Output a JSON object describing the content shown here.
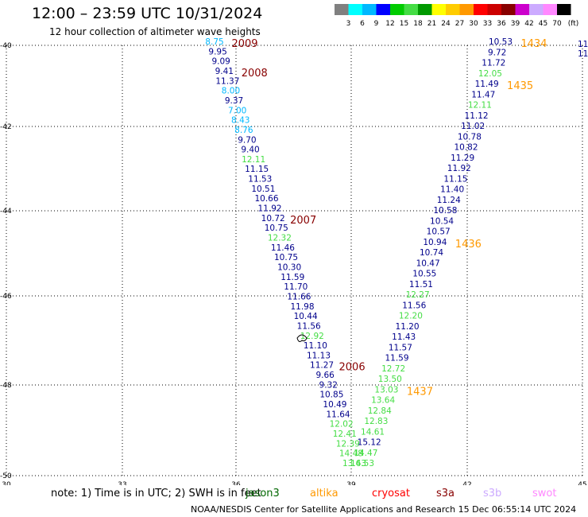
{
  "header": {
    "title": "12:00 – 23:59 UTC 10/31/2024",
    "subtitle": "12 hour collection of altimeter wave heights"
  },
  "colorbar": {
    "unit": "(ft)",
    "labels": [
      "3",
      "6",
      "9",
      "12",
      "15",
      "18",
      "21",
      "24",
      "27",
      "30",
      "33",
      "36",
      "39",
      "42",
      "45",
      "70"
    ],
    "colors": [
      "#808080",
      "#00ffff",
      "#00b8ff",
      "#0000ff",
      "#00cc00",
      "#44dd44",
      "#009900",
      "#ffff00",
      "#ffcc00",
      "#ff9900",
      "#ff0000",
      "#cc0000",
      "#880000",
      "#cc00cc",
      "#ccaaff",
      "#ff88ff",
      "#000000"
    ]
  },
  "axes": {
    "x_ticks": [
      "30",
      "33",
      "36",
      "39",
      "42",
      "45"
    ],
    "y_ticks": [
      "-40",
      "-42",
      "-44",
      "-46",
      "-48",
      "-50"
    ]
  },
  "satellite_colors": {
    "c2": "#00008b",
    "c1": "#00b8ff",
    "c3": "#44dd44",
    "pass": "#880000",
    "pass2": "#ff9900"
  },
  "map_data": {
    "left_track": [
      {
        "v": "8.75",
        "c": "c1"
      },
      {
        "v": "9.95",
        "c": "c2"
      },
      {
        "v": "9.09",
        "c": "c2"
      },
      {
        "v": "9.41",
        "c": "c2"
      },
      {
        "v": "11.37",
        "c": "c2"
      },
      {
        "v": "8.00",
        "c": "c1"
      },
      {
        "v": "9.37",
        "c": "c2"
      },
      {
        "v": "7.00",
        "c": "c1"
      },
      {
        "v": "8.43",
        "c": "c1"
      },
      {
        "v": "8.76",
        "c": "c1"
      },
      {
        "v": "9.70",
        "c": "c2"
      },
      {
        "v": "9.40",
        "c": "c2"
      },
      {
        "v": "12.11",
        "c": "c3"
      },
      {
        "v": "11.15",
        "c": "c2"
      },
      {
        "v": "11.53",
        "c": "c2"
      },
      {
        "v": "10.51",
        "c": "c2"
      },
      {
        "v": "10.66",
        "c": "c2"
      },
      {
        "v": "11.92",
        "c": "c2"
      },
      {
        "v": "10.72",
        "c": "c2"
      },
      {
        "v": "10.75",
        "c": "c2"
      },
      {
        "v": "12.32",
        "c": "c3"
      },
      {
        "v": "11.46",
        "c": "c2"
      },
      {
        "v": "10.75",
        "c": "c2"
      },
      {
        "v": "10.30",
        "c": "c2"
      },
      {
        "v": "11.59",
        "c": "c2"
      },
      {
        "v": "11.70",
        "c": "c2"
      },
      {
        "v": "11.66",
        "c": "c2"
      },
      {
        "v": "11.98",
        "c": "c2"
      },
      {
        "v": "10.44",
        "c": "c2"
      },
      {
        "v": "11.56",
        "c": "c2"
      },
      {
        "v": "12.92",
        "c": "c3"
      },
      {
        "v": "11.10",
        "c": "c2"
      },
      {
        "v": "11.13",
        "c": "c2"
      },
      {
        "v": "11.27",
        "c": "c2"
      },
      {
        "v": "9.66",
        "c": "c2"
      },
      {
        "v": "9.32",
        "c": "c2"
      },
      {
        "v": "10.85",
        "c": "c2"
      },
      {
        "v": "10.49",
        "c": "c2"
      },
      {
        "v": "11.64",
        "c": "c2"
      },
      {
        "v": "12.02",
        "c": "c3"
      },
      {
        "v": "12.41",
        "c": "c3"
      },
      {
        "v": "12.39",
        "c": "c3"
      },
      {
        "v": "14.48",
        "c": "c3"
      },
      {
        "v": "13.63",
        "c": "c3"
      }
    ],
    "right_track": [
      {
        "v": "10.53",
        "c": "c2"
      },
      {
        "v": "9.72",
        "c": "c2"
      },
      {
        "v": "11.72",
        "c": "c2"
      },
      {
        "v": "12.05",
        "c": "c3"
      },
      {
        "v": "11.49",
        "c": "c2"
      },
      {
        "v": "11.47",
        "c": "c2"
      },
      {
        "v": "12.11",
        "c": "c3"
      },
      {
        "v": "11.12",
        "c": "c2"
      },
      {
        "v": "11.02",
        "c": "c2"
      },
      {
        "v": "10.78",
        "c": "c2"
      },
      {
        "v": "10.82",
        "c": "c2"
      },
      {
        "v": "11.29",
        "c": "c2"
      },
      {
        "v": "11.92",
        "c": "c2"
      },
      {
        "v": "11.15",
        "c": "c2"
      },
      {
        "v": "11.40",
        "c": "c2"
      },
      {
        "v": "11.24",
        "c": "c2"
      },
      {
        "v": "10.58",
        "c": "c2"
      },
      {
        "v": "10.54",
        "c": "c2"
      },
      {
        "v": "10.57",
        "c": "c2"
      },
      {
        "v": "10.94",
        "c": "c2"
      },
      {
        "v": "10.74",
        "c": "c2"
      },
      {
        "v": "10.47",
        "c": "c2"
      },
      {
        "v": "10.55",
        "c": "c2"
      },
      {
        "v": "11.51",
        "c": "c2"
      },
      {
        "v": "12.27",
        "c": "c3"
      },
      {
        "v": "11.56",
        "c": "c2"
      },
      {
        "v": "12.20",
        "c": "c3"
      },
      {
        "v": "11.20",
        "c": "c2"
      },
      {
        "v": "11.43",
        "c": "c2"
      },
      {
        "v": "11.57",
        "c": "c2"
      },
      {
        "v": "11.59",
        "c": "c2"
      },
      {
        "v": "12.72",
        "c": "c3"
      },
      {
        "v": "13.50",
        "c": "c3"
      },
      {
        "v": "13.03",
        "c": "c3"
      },
      {
        "v": "13.64",
        "c": "c3"
      },
      {
        "v": "12.84",
        "c": "c3"
      },
      {
        "v": "12.83",
        "c": "c3"
      },
      {
        "v": "14.61",
        "c": "c3"
      },
      {
        "v": "15.12",
        "c": "c2"
      },
      {
        "v": "14.47",
        "c": "c3"
      },
      {
        "v": "14.53",
        "c": "c3"
      }
    ],
    "edge_labels": [
      "11",
      "11"
    ],
    "pass_labels_left": [
      {
        "t": "2009",
        "row": 0
      },
      {
        "t": "2008",
        "row": 3
      },
      {
        "t": "2007",
        "row": 18
      },
      {
        "t": "2006",
        "row": 33
      }
    ],
    "pass_labels_right": [
      {
        "t": "1434",
        "row": 0
      },
      {
        "t": "1435",
        "row": 4
      },
      {
        "t": "1436",
        "row": 19
      },
      {
        "t": "1437",
        "row": 33
      }
    ]
  },
  "footer": {
    "note": "note: 1) Time is in UTC; 2) SWH is in feet",
    "satellites": [
      {
        "name": "jason3",
        "color": "#006600",
        "left": 309
      },
      {
        "name": "altika",
        "color": "#ff9900",
        "left": 390
      },
      {
        "name": "cryosat",
        "color": "#ff0000",
        "left": 468
      },
      {
        "name": "s3a",
        "color": "#880000",
        "left": 549
      },
      {
        "name": "s3b",
        "color": "#ccaaff",
        "left": 608
      },
      {
        "name": "swot",
        "color": "#ff88ff",
        "left": 670
      }
    ],
    "credit": "NOAA/NESDIS Center for Satellite Applications and Research    15 Dec 06:55:14 UTC 2024"
  }
}
